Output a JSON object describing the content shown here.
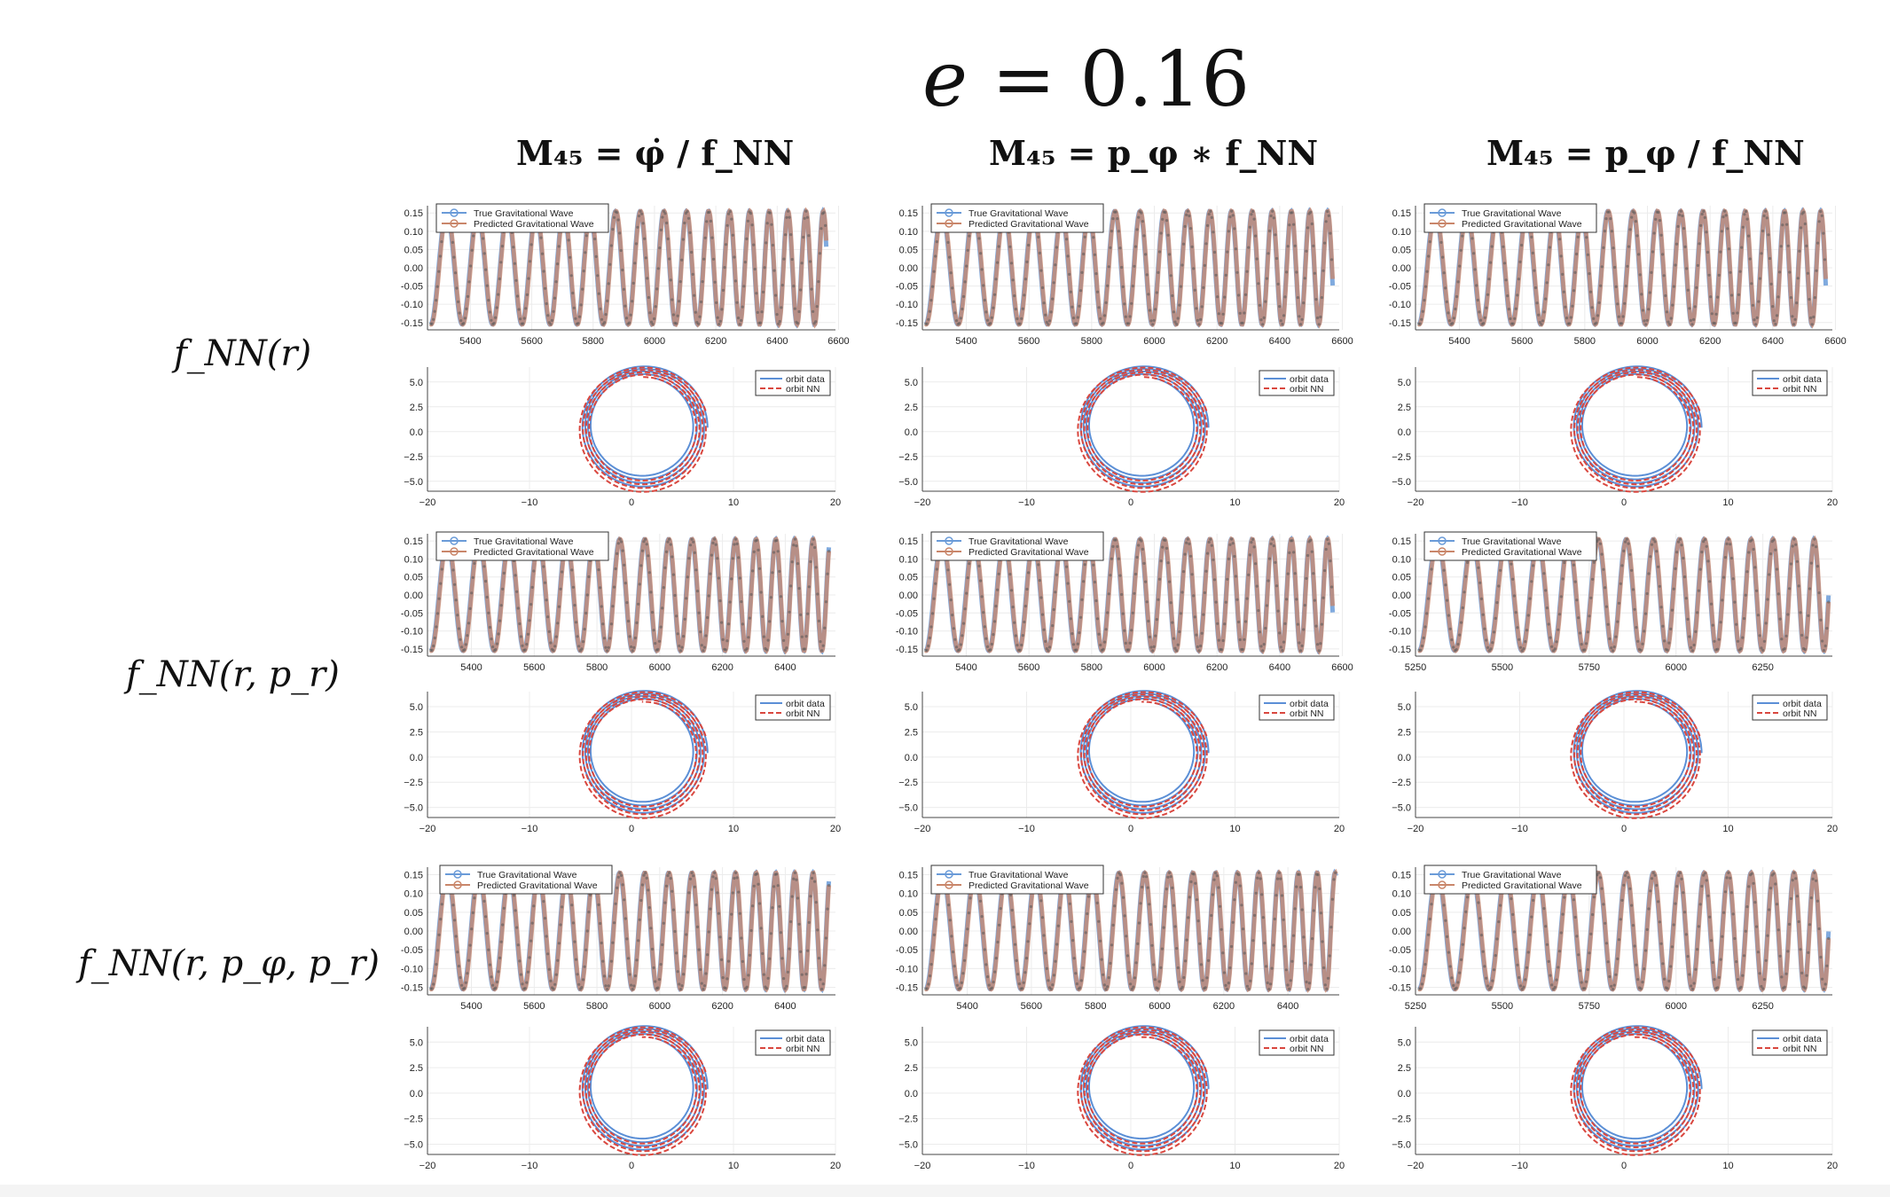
{
  "title": {
    "lhs": "e",
    "eq": "=",
    "value": "0.16"
  },
  "columns": [
    {
      "label": "M₄₅ = φ̇ / f_NN"
    },
    {
      "label": "M₄₅ = p_φ ∗ f_NN"
    },
    {
      "label": "M₄₅ = p_φ / f_NN"
    }
  ],
  "rows": [
    {
      "label": "f_NN(r)"
    },
    {
      "label": "f_NN(r, p_r)"
    },
    {
      "label": "f_NN(r, p_φ, p_r)"
    }
  ],
  "colors": {
    "true_wave": "#6a9bd8",
    "pred_wave": "#c9866a",
    "orbit_data": "#5b8fd6",
    "orbit_nn": "#d9473f"
  },
  "chart_data": [
    {
      "type": "line",
      "panel": "wave",
      "row": 0,
      "col": 0,
      "x": [
        5260,
        6590
      ],
      "ylim": [
        -0.17,
        0.17
      ],
      "yticks": [
        0.15,
        0.1,
        0.05,
        0.0,
        -0.05,
        -0.1,
        -0.15
      ],
      "ytick_labels": [
        "0.15",
        "0.10",
        "0.05",
        "0.00",
        "-0.05",
        "-0.10",
        "-0.15"
      ],
      "xticks": [
        5400,
        5600,
        5800,
        6000,
        6200,
        6400,
        6600
      ],
      "xtick_labels": [
        "5400",
        "5600",
        "5800",
        "6000",
        "6200",
        "6400",
        "6600"
      ],
      "wave": {
        "start": 5270,
        "end": 6560,
        "p0": 105,
        "p1": 55
      },
      "series": [
        {
          "name": "True Gravitational Wave"
        },
        {
          "name": "Predicted Gravitational Wave"
        }
      ]
    },
    {
      "type": "line",
      "panel": "orbit",
      "row": 0,
      "col": 0,
      "xlim": [
        -20,
        20
      ],
      "ylim": [
        -6,
        6.5
      ],
      "xticks": [
        -20,
        -10,
        0,
        10,
        20
      ],
      "xtick_labels": [
        "−20",
        "−10",
        "0",
        "10",
        "20"
      ],
      "yticks": [
        5.0,
        2.5,
        0.0,
        -2.5,
        -5.0
      ],
      "ytick_labels": [
        "5.0",
        "2.5",
        "0.0",
        "−2.5",
        "−5.0"
      ],
      "series": [
        {
          "name": "orbit data"
        },
        {
          "name": "orbit NN"
        }
      ]
    },
    {
      "type": "line",
      "panel": "wave",
      "row": 0,
      "col": 1,
      "x": [
        5260,
        6590
      ],
      "ylim": [
        -0.17,
        0.17
      ],
      "yticks": [
        0.15,
        0.1,
        0.05,
        0.0,
        -0.05,
        -0.1,
        -0.15
      ],
      "ytick_labels": [
        "0.15",
        "0.10",
        "0.05",
        "0.00",
        "-0.05",
        "-0.10",
        "-0.15"
      ],
      "xticks": [
        5400,
        5600,
        5800,
        6000,
        6200,
        6400,
        6600
      ],
      "xtick_labels": [
        "5400",
        "5600",
        "5800",
        "6000",
        "6200",
        "6400",
        "6600"
      ],
      "wave": {
        "start": 5270,
        "end": 6570,
        "p0": 105,
        "p1": 55
      },
      "series": [
        {
          "name": "True Gravitational Wave"
        },
        {
          "name": "Predicted Gravitational Wave"
        }
      ]
    },
    {
      "type": "line",
      "panel": "orbit",
      "row": 0,
      "col": 1,
      "xlim": [
        -20,
        20
      ],
      "ylim": [
        -6,
        6.5
      ],
      "xticks": [
        -20,
        -10,
        0,
        10,
        20
      ],
      "xtick_labels": [
        "−20",
        "−10",
        "0",
        "10",
        "20"
      ],
      "yticks": [
        5.0,
        2.5,
        0.0,
        -2.5,
        -5.0
      ],
      "ytick_labels": [
        "5.0",
        "2.5",
        "0.0",
        "−2.5",
        "−5.0"
      ],
      "series": [
        {
          "name": "orbit data"
        },
        {
          "name": "orbit NN"
        }
      ]
    },
    {
      "type": "line",
      "panel": "wave",
      "row": 0,
      "col": 2,
      "x": [
        5260,
        6590
      ],
      "ylim": [
        -0.17,
        0.17
      ],
      "yticks": [
        0.15,
        0.1,
        0.05,
        0.0,
        -0.05,
        -0.1,
        -0.15
      ],
      "ytick_labels": [
        "0.15",
        "0.10",
        "0.05",
        "0.00",
        "-0.05",
        "-0.10",
        "-0.15"
      ],
      "xticks": [
        5400,
        5600,
        5800,
        6000,
        6200,
        6400,
        6600
      ],
      "xtick_labels": [
        "5400",
        "5600",
        "5800",
        "6000",
        "6200",
        "6400",
        "6600"
      ],
      "wave": {
        "start": 5270,
        "end": 6570,
        "p0": 105,
        "p1": 55
      },
      "series": [
        {
          "name": "True Gravitational Wave"
        },
        {
          "name": "Predicted Gravitational Wave"
        }
      ]
    },
    {
      "type": "line",
      "panel": "orbit",
      "row": 0,
      "col": 2,
      "xlim": [
        -20,
        20
      ],
      "ylim": [
        -6,
        6.5
      ],
      "xticks": [
        -20,
        -10,
        0,
        10,
        20
      ],
      "xtick_labels": [
        "−20",
        "−10",
        "0",
        "10",
        "20"
      ],
      "yticks": [
        5.0,
        2.5,
        0.0,
        -2.5,
        -5.0
      ],
      "ytick_labels": [
        "5.0",
        "2.5",
        "0.0",
        "−2.5",
        "−5.0"
      ],
      "series": [
        {
          "name": "orbit data"
        },
        {
          "name": "orbit NN"
        }
      ]
    },
    {
      "type": "line",
      "panel": "wave",
      "row": 1,
      "col": 0,
      "x": [
        5260,
        6560
      ],
      "ylim": [
        -0.17,
        0.17
      ],
      "yticks": [
        0.15,
        0.1,
        0.05,
        0.0,
        -0.05,
        -0.1,
        -0.15
      ],
      "ytick_labels": [
        "0.15",
        "0.10",
        "0.05",
        "0.00",
        "-0.05",
        "-0.10",
        "-0.15"
      ],
      "xticks": [
        5400,
        5600,
        5800,
        6000,
        6200,
        6400
      ],
      "xtick_labels": [
        "5400",
        "5600",
        "5800",
        "6000",
        "6200",
        "6400"
      ],
      "wave": {
        "start": 5270,
        "end": 6540,
        "p0": 105,
        "p1": 55
      },
      "series": [
        {
          "name": "True Gravitational Wave"
        },
        {
          "name": "Predicted Gravitational Wave"
        }
      ]
    },
    {
      "type": "line",
      "panel": "orbit",
      "row": 1,
      "col": 0,
      "xlim": [
        -20,
        20
      ],
      "ylim": [
        -6,
        6.5
      ],
      "xticks": [
        -20,
        -10,
        0,
        10,
        20
      ],
      "xtick_labels": [
        "−20",
        "−10",
        "0",
        "10",
        "20"
      ],
      "yticks": [
        5.0,
        2.5,
        0.0,
        -2.5,
        -5.0
      ],
      "ytick_labels": [
        "5.0",
        "2.5",
        "0.0",
        "−2.5",
        "−5.0"
      ],
      "series": [
        {
          "name": "orbit data"
        },
        {
          "name": "orbit NN"
        }
      ]
    },
    {
      "type": "line",
      "panel": "wave",
      "row": 1,
      "col": 1,
      "x": [
        5260,
        6590
      ],
      "ylim": [
        -0.17,
        0.17
      ],
      "yticks": [
        0.15,
        0.1,
        0.05,
        0.0,
        -0.05,
        -0.1,
        -0.15
      ],
      "ytick_labels": [
        "0.15",
        "0.10",
        "0.05",
        "0.00",
        "-0.05",
        "-0.10",
        "-0.15"
      ],
      "xticks": [
        5400,
        5600,
        5800,
        6000,
        6200,
        6400,
        6600
      ],
      "xtick_labels": [
        "5400",
        "5600",
        "5800",
        "6000",
        "6200",
        "6400",
        "6600"
      ],
      "wave": {
        "start": 5270,
        "end": 6570,
        "p0": 105,
        "p1": 55
      },
      "series": [
        {
          "name": "True Gravitational Wave"
        },
        {
          "name": "Predicted Gravitational Wave"
        }
      ]
    },
    {
      "type": "line",
      "panel": "orbit",
      "row": 1,
      "col": 1,
      "xlim": [
        -20,
        20
      ],
      "ylim": [
        -6,
        6.5
      ],
      "xticks": [
        -20,
        -10,
        0,
        10,
        20
      ],
      "xtick_labels": [
        "−20",
        "−10",
        "0",
        "10",
        "20"
      ],
      "yticks": [
        5.0,
        2.5,
        0.0,
        -2.5,
        -5.0
      ],
      "ytick_labels": [
        "5.0",
        "2.5",
        "0.0",
        "−2.5",
        "−5.0"
      ],
      "series": [
        {
          "name": "orbit data"
        },
        {
          "name": "orbit NN"
        }
      ]
    },
    {
      "type": "line",
      "panel": "wave",
      "row": 1,
      "col": 2,
      "x": [
        5250,
        6450
      ],
      "ylim": [
        -0.17,
        0.17
      ],
      "yticks": [
        0.15,
        0.1,
        0.05,
        0.0,
        -0.05,
        -0.1,
        -0.15
      ],
      "ytick_labels": [
        "0.15",
        "0.10",
        "0.05",
        "0.00",
        "-0.05",
        "-0.10",
        "-0.15"
      ],
      "xticks": [
        5250,
        5500,
        5750,
        6000,
        6250
      ],
      "xtick_labels": [
        "5250",
        "5500",
        "5750",
        "6000",
        "6250"
      ],
      "wave": {
        "start": 5260,
        "end": 6440,
        "p0": 105,
        "p1": 55
      },
      "series": [
        {
          "name": "True Gravitational Wave"
        },
        {
          "name": "Predicted Gravitational Wave"
        }
      ]
    },
    {
      "type": "line",
      "panel": "orbit",
      "row": 1,
      "col": 2,
      "xlim": [
        -20,
        20
      ],
      "ylim": [
        -6,
        6.5
      ],
      "xticks": [
        -20,
        -10,
        0,
        10,
        20
      ],
      "xtick_labels": [
        "−20",
        "−10",
        "0",
        "10",
        "20"
      ],
      "yticks": [
        5.0,
        2.5,
        0.0,
        -2.5,
        -5.0
      ],
      "ytick_labels": [
        "5.0",
        "2.5",
        "0.0",
        "−2.5",
        "−5.0"
      ],
      "series": [
        {
          "name": "orbit data"
        },
        {
          "name": "orbit NN"
        }
      ]
    },
    {
      "type": "line",
      "panel": "wave",
      "row": 2,
      "col": 0,
      "x": [
        5260,
        6560
      ],
      "ylim": [
        -0.17,
        0.17
      ],
      "yticks": [
        0.15,
        0.1,
        0.05,
        0.0,
        -0.05,
        -0.1,
        -0.15
      ],
      "ytick_labels": [
        "0.15",
        "0.10",
        "0.05",
        "0.00",
        "-0.05",
        "-0.10",
        "-0.15"
      ],
      "xticks": [
        5400,
        5600,
        5800,
        6000,
        6200,
        6400
      ],
      "xtick_labels": [
        "5400",
        "5600",
        "5800",
        "6000",
        "6200",
        "6400"
      ],
      "wave": {
        "start": 5270,
        "end": 6540,
        "p0": 105,
        "p1": 55
      },
      "series": [
        {
          "name": "True Gravitational Wave"
        },
        {
          "name": "Predicted Gravitational Wave"
        }
      ]
    },
    {
      "type": "line",
      "panel": "orbit",
      "row": 2,
      "col": 0,
      "xlim": [
        -20,
        20
      ],
      "ylim": [
        -6,
        6.5
      ],
      "xticks": [
        -20,
        -10,
        0,
        10,
        20
      ],
      "xtick_labels": [
        "−20",
        "−10",
        "0",
        "10",
        "20"
      ],
      "yticks": [
        5.0,
        2.5,
        0.0,
        -2.5,
        -5.0
      ],
      "ytick_labels": [
        "5.0",
        "2.5",
        "0.0",
        "−2.5",
        "−5.0"
      ],
      "series": [
        {
          "name": "orbit data"
        },
        {
          "name": "orbit NN"
        }
      ]
    },
    {
      "type": "line",
      "panel": "wave",
      "row": 2,
      "col": 1,
      "x": [
        5260,
        6560
      ],
      "ylim": [
        -0.17,
        0.17
      ],
      "yticks": [
        0.15,
        0.1,
        0.05,
        0.0,
        -0.05,
        -0.1,
        -0.15
      ],
      "ytick_labels": [
        "0.15",
        "0.10",
        "0.05",
        "0.00",
        "-0.05",
        "-0.10",
        "-0.15"
      ],
      "xticks": [
        5400,
        5600,
        5800,
        6000,
        6200,
        6400
      ],
      "xtick_labels": [
        "5400",
        "5600",
        "5800",
        "6000",
        "6200",
        "6400"
      ],
      "wave": {
        "start": 5270,
        "end": 6550,
        "p0": 105,
        "p1": 55
      },
      "series": [
        {
          "name": "True Gravitational Wave"
        },
        {
          "name": "Predicted Gravitational Wave"
        }
      ]
    },
    {
      "type": "line",
      "panel": "orbit",
      "row": 2,
      "col": 1,
      "xlim": [
        -20,
        20
      ],
      "ylim": [
        -6,
        6.5
      ],
      "xticks": [
        -20,
        -10,
        0,
        10,
        20
      ],
      "xtick_labels": [
        "−20",
        "−10",
        "0",
        "10",
        "20"
      ],
      "yticks": [
        5.0,
        2.5,
        0.0,
        -2.5,
        -5.0
      ],
      "ytick_labels": [
        "5.0",
        "2.5",
        "0.0",
        "−2.5",
        "−5.0"
      ],
      "series": [
        {
          "name": "orbit data"
        },
        {
          "name": "orbit NN"
        }
      ]
    },
    {
      "type": "line",
      "panel": "wave",
      "row": 2,
      "col": 2,
      "x": [
        5250,
        6450
      ],
      "ylim": [
        -0.17,
        0.17
      ],
      "yticks": [
        0.15,
        0.1,
        0.05,
        0.0,
        -0.05,
        -0.1,
        -0.15
      ],
      "ytick_labels": [
        "0.15",
        "0.10",
        "0.05",
        "0.00",
        "-0.05",
        "-0.10",
        "-0.15"
      ],
      "xticks": [
        5250,
        5500,
        5750,
        6000,
        6250
      ],
      "xtick_labels": [
        "5250",
        "5500",
        "5750",
        "6000",
        "6250"
      ],
      "wave": {
        "start": 5260,
        "end": 6440,
        "p0": 105,
        "p1": 55
      },
      "series": [
        {
          "name": "True Gravitational Wave"
        },
        {
          "name": "Predicted Gravitational Wave"
        }
      ]
    },
    {
      "type": "line",
      "panel": "orbit",
      "row": 2,
      "col": 2,
      "xlim": [
        -20,
        20
      ],
      "ylim": [
        -6,
        6.5
      ],
      "xticks": [
        -20,
        -10,
        0,
        10,
        20
      ],
      "xtick_labels": [
        "−20",
        "−10",
        "0",
        "10",
        "20"
      ],
      "yticks": [
        5.0,
        2.5,
        0.0,
        -2.5,
        -5.0
      ],
      "ytick_labels": [
        "5.0",
        "2.5",
        "0.0",
        "−2.5",
        "−5.0"
      ],
      "series": [
        {
          "name": "orbit data"
        },
        {
          "name": "orbit NN"
        }
      ]
    }
  ]
}
